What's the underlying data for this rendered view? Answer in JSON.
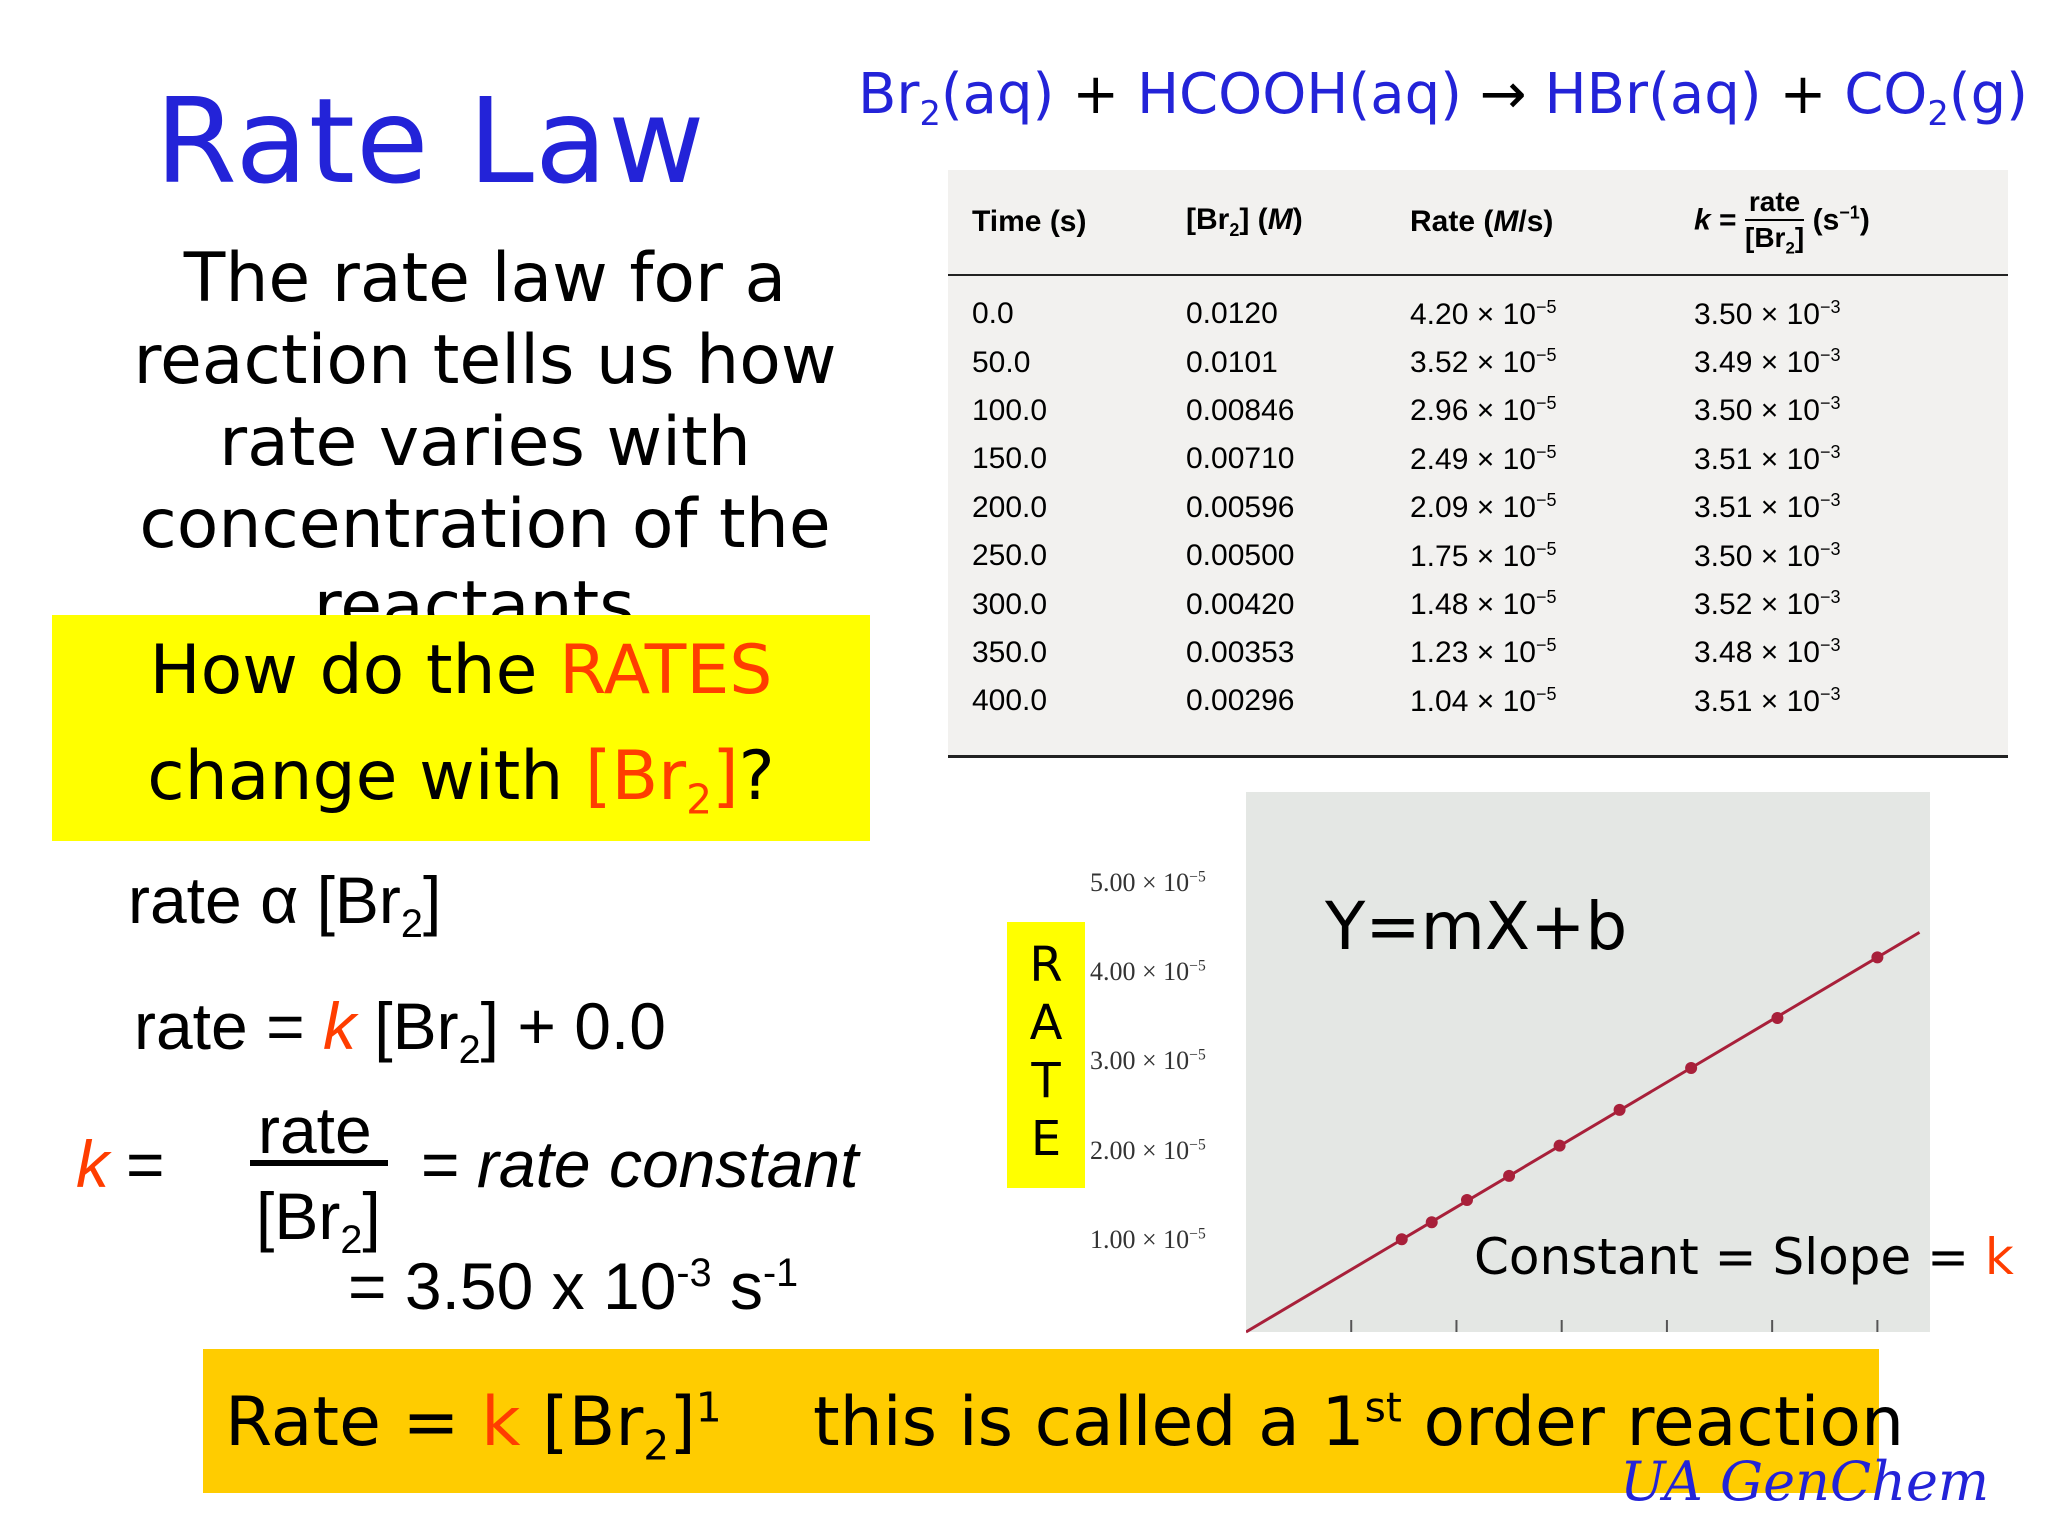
{
  "title": "Rate Law",
  "reaction": {
    "r1": "Br",
    "r1_sub": "2",
    "r1_state": "(aq)",
    "plus1": "+",
    "r2": "HCOOH(aq)",
    "arrow": "→",
    "p1": "HBr(aq)",
    "plus2": "+",
    "p2": "CO",
    "p2_sub": "2",
    "p2_state": "(g)"
  },
  "intro_text": "The rate law for a reaction tells us how rate varies with concentration of the reactants.",
  "question": {
    "prefix": "How do the ",
    "highlight": "RATES",
    "line2_prefix": "change with ",
    "highlight2": "[Br",
    "highlight2_sub": "2",
    "highlight2_end": "]",
    "suffix": "?"
  },
  "equations": {
    "prop_left": "rate",
    "prop_symbol": "α",
    "prop_right": "[Br",
    "prop_sub": "2",
    "prop_end": "]",
    "rate_left": "rate = ",
    "rate_k": "k",
    "rate_right": " [Br",
    "rate_sub": "2",
    "rate_end": "] + 0.0",
    "k_symbol": "k",
    "k_eq": "=",
    "k_num": "rate",
    "k_den": "[Br",
    "k_den_sub": "2",
    "k_den_end": "]",
    "k_desc": "= rate constant",
    "k_value": "= 3.50 x 10",
    "k_value_exp": "-3",
    "k_value_unit": " s",
    "k_value_unit_exp": "-1"
  },
  "table": {
    "headers": [
      "Time (s)",
      "[Br₂] (M)",
      "Rate (M/s)",
      "k = rate/[Br₂] (s⁻¹)"
    ],
    "header_parts": {
      "time": "Time (s)",
      "br": "[Br",
      "br_sub": "2",
      "br_end": "] (",
      "br_unit": "M",
      "br_close": ")",
      "rate": "Rate (",
      "rate_unit": "M",
      "rate_end": "/s)",
      "k": "k",
      "k_eq": " =",
      "k_num": "rate",
      "k_den": "[Br",
      "k_den_sub": "2",
      "k_den_end": "]",
      "k_unit": "(s",
      "k_unit_exp": "−1",
      "k_unit_end": ")"
    },
    "rows": [
      {
        "time": "0.0",
        "br2": "0.0120",
        "rate": "4.20 × 10",
        "rate_exp": "−5",
        "k": "3.50 × 10",
        "k_exp": "−3"
      },
      {
        "time": "50.0",
        "br2": "0.0101",
        "rate": "3.52 × 10",
        "rate_exp": "−5",
        "k": "3.49 × 10",
        "k_exp": "−3"
      },
      {
        "time": "100.0",
        "br2": "0.00846",
        "rate": "2.96 × 10",
        "rate_exp": "−5",
        "k": "3.50 × 10",
        "k_exp": "−3"
      },
      {
        "time": "150.0",
        "br2": "0.00710",
        "rate": "2.49 × 10",
        "rate_exp": "−5",
        "k": "3.51 × 10",
        "k_exp": "−3"
      },
      {
        "time": "200.0",
        "br2": "0.00596",
        "rate": "2.09 × 10",
        "rate_exp": "−5",
        "k": "3.51 × 10",
        "k_exp": "−3"
      },
      {
        "time": "250.0",
        "br2": "0.00500",
        "rate": "1.75 × 10",
        "rate_exp": "−5",
        "k": "3.50 × 10",
        "k_exp": "−3"
      },
      {
        "time": "300.0",
        "br2": "0.00420",
        "rate": "1.48 × 10",
        "rate_exp": "−5",
        "k": "3.52 × 10",
        "k_exp": "−3"
      },
      {
        "time": "350.0",
        "br2": "0.00353",
        "rate": "1.23 × 10",
        "rate_exp": "−5",
        "k": "3.48 × 10",
        "k_exp": "−3"
      },
      {
        "time": "400.0",
        "br2": "0.00296",
        "rate": "1.04 × 10",
        "rate_exp": "−5",
        "k": "3.51 × 10",
        "k_exp": "−3"
      }
    ]
  },
  "chart_data": {
    "type": "scatter",
    "ylabel": "RATE",
    "y_tick_labels": [
      {
        "mant": "5.00 × 10",
        "exp": "−5"
      },
      {
        "mant": "4.00 × 10",
        "exp": "−5"
      },
      {
        "mant": "3.00 × 10",
        "exp": "−5"
      },
      {
        "mant": "2.00 × 10",
        "exp": "−5"
      },
      {
        "mant": "1.00 × 10",
        "exp": "−5"
      }
    ],
    "y_ticks": [
      5e-05,
      4e-05,
      3e-05,
      2e-05,
      1e-05
    ],
    "xlim": [
      0,
      0.013
    ],
    "ylim": [
      0,
      5e-05
    ],
    "x_ticks": [
      0.002,
      0.004,
      0.006,
      0.008,
      0.01,
      0.012
    ],
    "grid": false,
    "series": [
      {
        "x": [
          0.00296,
          0.00353,
          0.0042,
          0.005,
          0.00596,
          0.0071,
          0.00846,
          0.0101,
          0.012
        ],
        "y": [
          1.04e-05,
          1.23e-05,
          1.48e-05,
          1.75e-05,
          2.09e-05,
          2.49e-05,
          2.96e-05,
          3.52e-05,
          4.2e-05
        ]
      }
    ],
    "fit_line": {
      "slope": 0.0035,
      "intercept": 0
    },
    "annotations": [
      "Y=mX+b",
      "Constant = Slope = k"
    ],
    "line_color": "#a8203a",
    "point_color": "#a8203a"
  },
  "chart_notes": {
    "ymxb": "Y=mX+b",
    "slope_prefix": "Constant = Slope = ",
    "slope_k": "k"
  },
  "footer": {
    "rate_left": "Rate = ",
    "rate_k": "k",
    "rate_mid": " [Br",
    "rate_sub": "2",
    "rate_end": "]",
    "rate_exp": "1",
    "order_text": "this is called  a 1",
    "order_sup": "st",
    "order_end": " order reaction"
  },
  "brand": "UA GenChem",
  "colors": {
    "title_blue": "#2323d8",
    "highlight_red": "#ff3d00",
    "yellow": "#ffff00",
    "footer_gold": "#ffcc00"
  }
}
